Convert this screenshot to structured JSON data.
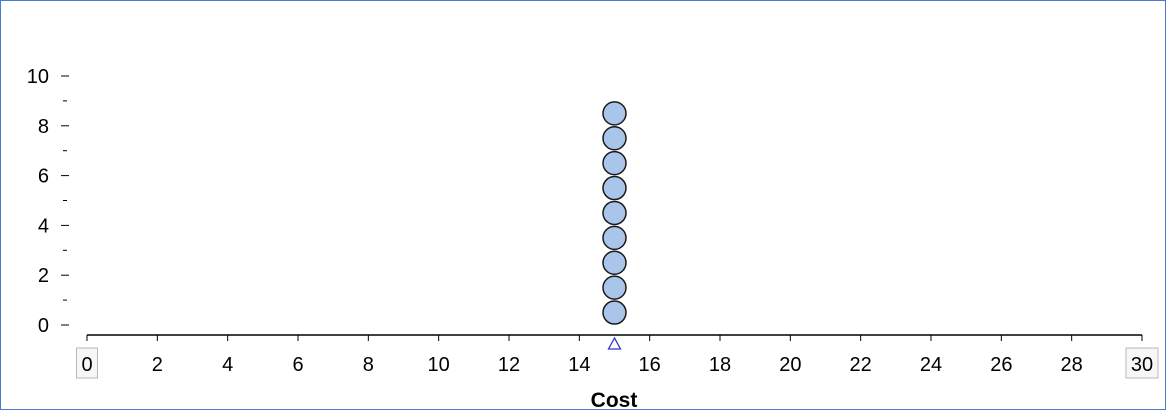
{
  "chart_data": {
    "type": "dotplot",
    "title": "",
    "xlabel": "Cost",
    "ylabel": "",
    "xlim": [
      0,
      30
    ],
    "ylim": [
      0,
      10
    ],
    "x_ticks": [
      0,
      2,
      4,
      6,
      8,
      10,
      12,
      14,
      16,
      18,
      20,
      22,
      24,
      26,
      28,
      30
    ],
    "y_ticks": [
      0,
      2,
      4,
      6,
      8,
      10
    ],
    "y_minor_ticks": [
      1,
      3,
      5,
      7,
      9
    ],
    "points": [
      {
        "x": 15,
        "y": 0.5
      },
      {
        "x": 15,
        "y": 1.5
      },
      {
        "x": 15,
        "y": 2.5
      },
      {
        "x": 15,
        "y": 3.5
      },
      {
        "x": 15,
        "y": 4.5
      },
      {
        "x": 15,
        "y": 5.5
      },
      {
        "x": 15,
        "y": 6.5
      },
      {
        "x": 15,
        "y": 7.5
      },
      {
        "x": 15,
        "y": 8.5
      }
    ],
    "mean_marker": {
      "x": 15,
      "shape": "triangle",
      "color": "#3333cc"
    },
    "boxed_tick_labels": [
      0,
      30
    ],
    "grid": false,
    "legend": "none",
    "point_fill": "#a9c6ea",
    "point_stroke": "#1a1a1a",
    "frame_color": "#4a7bd0"
  }
}
